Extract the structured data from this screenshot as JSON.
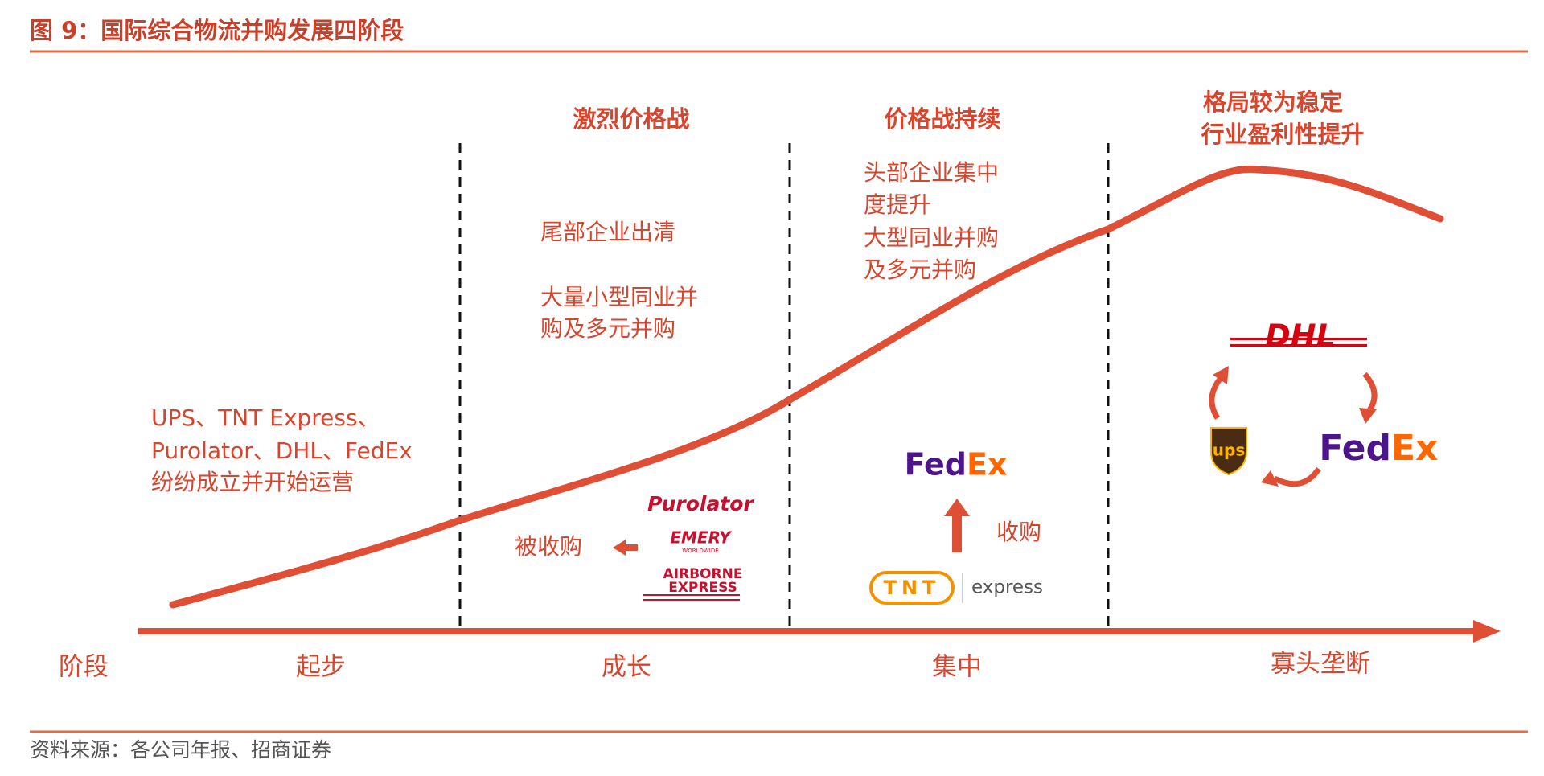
{
  "title": "图 9：国际综合物流并购发展四阶段",
  "phase_headings": [
    "激烈价格战",
    "价格战持续",
    "格局较为稳定",
    "行业盈利性提升"
  ],
  "startup_text": [
    "UPS、TNT Express、",
    "Purolator、DHL、FedEx",
    "纷纷成立并开始运营"
  ],
  "growth_text": [
    "尾部企业出清",
    "大量小型同业并",
    "购及多元并购"
  ],
  "concentration_text": [
    "头部企业集中",
    "度提升",
    "大型同业并购",
    "及多元并购"
  ],
  "growth_logos": {
    "purolator": "Purolator",
    "emery": "EMERY",
    "emery_sub": "WORLDWIDE",
    "airborne": "AIRBORNE",
    "airborne_sub": "EXPRESS",
    "acquired": "被收购"
  },
  "concentration_logos": {
    "fedex_fed": "Fed",
    "fedex_ex": "Ex",
    "acquire": "收购",
    "tnt": "TNT",
    "tnt_express": "express"
  },
  "oligopoly_logos": {
    "dhl": "DHL",
    "ups": "ups",
    "fedex_fed": "Fed",
    "fedex_ex": "Ex"
  },
  "axis": {
    "label": "阶段",
    "stages": [
      "起步",
      "成长",
      "集中",
      "寡头垄断"
    ]
  },
  "source": "资料来源：各公司年报、招商证券"
}
